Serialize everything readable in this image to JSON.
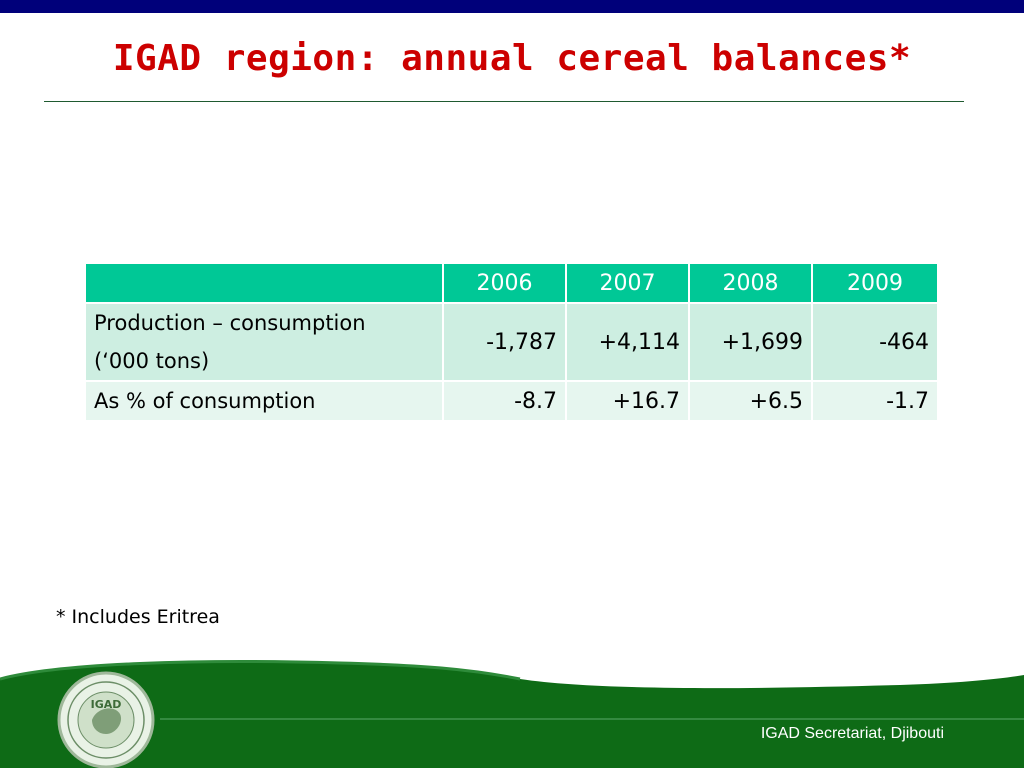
{
  "slide": {
    "title": "IGAD region: annual cereal balances*",
    "footnote": "* Includes Eritrea",
    "footer": "IGAD Secretariat, Djibouti",
    "logo_text": "IGAD"
  },
  "table": {
    "corner": "",
    "years": [
      "2006",
      "2007",
      "2008",
      "2009"
    ],
    "rows": [
      {
        "label_line1": "Production – consumption",
        "label_line2": "(‘000 tons)",
        "values": [
          "-1,787",
          "+4,114",
          "+1,699",
          "-464"
        ]
      },
      {
        "label_line1": "As % of consumption",
        "values": [
          "-8.7",
          "+16.7",
          "+6.5",
          "-1.7"
        ]
      }
    ]
  },
  "colors": {
    "top_bar": "#00007a",
    "title": "#cc0000",
    "header_fill": "#00c896",
    "row1_fill": "#cdeee1",
    "row2_fill": "#e6f6ef",
    "footer_green": "#0e6b16"
  }
}
